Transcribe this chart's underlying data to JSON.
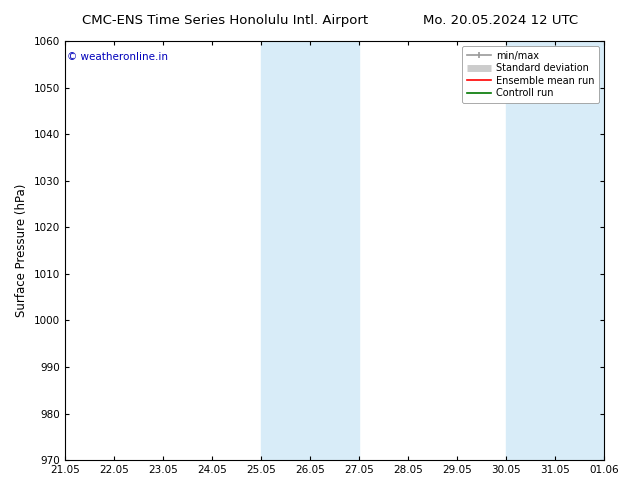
{
  "title_left": "CMC-ENS Time Series Honolulu Intl. Airport",
  "title_right": "Mo. 20.05.2024 12 UTC",
  "ylabel": "Surface Pressure (hPa)",
  "ylim": [
    970,
    1060
  ],
  "yticks": [
    970,
    980,
    990,
    1000,
    1010,
    1020,
    1030,
    1040,
    1050,
    1060
  ],
  "xtick_labels": [
    "21.05",
    "22.05",
    "23.05",
    "24.05",
    "25.05",
    "26.05",
    "27.05",
    "28.05",
    "29.05",
    "30.05",
    "31.05",
    "01.06"
  ],
  "shaded_bands": [
    {
      "xstart": 4,
      "xend": 6
    },
    {
      "xstart": 9,
      "xend": 11
    }
  ],
  "band_color": "#d8ecf8",
  "watermark": "© weatheronline.in",
  "watermark_color": "#0000bb",
  "legend_entries": [
    {
      "label": "min/max",
      "color": "#999999",
      "lw": 1.2,
      "type": "errorbar"
    },
    {
      "label": "Standard deviation",
      "color": "#cccccc",
      "lw": 5.0,
      "type": "band"
    },
    {
      "label": "Ensemble mean run",
      "color": "#ff0000",
      "lw": 1.2,
      "type": "line"
    },
    {
      "label": "Controll run",
      "color": "#007700",
      "lw": 1.2,
      "type": "line"
    }
  ],
  "bg_color": "#ffffff",
  "tick_label_fontsize": 7.5,
  "title_fontsize": 9.5,
  "ylabel_fontsize": 8.5,
  "watermark_fontsize": 7.5,
  "legend_fontsize": 7.0
}
